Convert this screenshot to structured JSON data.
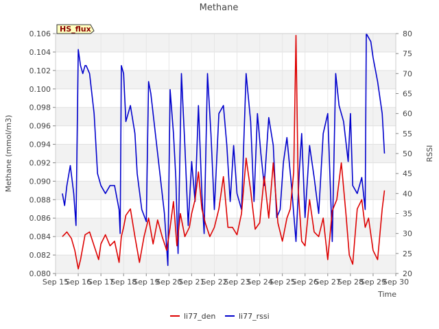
{
  "chart_data": {
    "type": "line",
    "title": "Methane",
    "xlabel": "Time",
    "ylabel": "Methane (mmol/m3)",
    "y2label": "RSSI",
    "badge": "HS_flux",
    "x_ticks": [
      "Sep 15",
      "Sep 16",
      "Sep 17",
      "Sep 18",
      "Sep 19",
      "Sep 20",
      "Sep 21",
      "Sep 22",
      "Sep 23",
      "Sep 24",
      "Sep 25",
      "Sep 26",
      "Sep 27",
      "Sep 28",
      "Sep 29",
      "Sep 30"
    ],
    "xlim": [
      15,
      30
    ],
    "ylim": [
      0.08,
      0.106
    ],
    "y_ticks": [
      "0.080",
      "0.082",
      "0.084",
      "0.086",
      "0.088",
      "0.090",
      "0.092",
      "0.094",
      "0.096",
      "0.098",
      "0.100",
      "0.102",
      "0.104",
      "0.106"
    ],
    "y2lim": [
      20,
      80
    ],
    "y2_ticks": [
      "20",
      "25",
      "30",
      "35",
      "40",
      "45",
      "50",
      "55",
      "60",
      "65",
      "70",
      "75",
      "80"
    ],
    "legend_position": "bottom",
    "grid": true,
    "series": [
      {
        "name": "li77_den",
        "axis": "left",
        "color": "#dd0000",
        "x": [
          15.3,
          15.5,
          15.7,
          15.85,
          16.0,
          16.1,
          16.3,
          16.5,
          16.7,
          16.9,
          17.0,
          17.2,
          17.4,
          17.6,
          17.8,
          17.9,
          18.0,
          18.1,
          18.3,
          18.5,
          18.7,
          18.9,
          19.1,
          19.3,
          19.5,
          19.7,
          19.9,
          20.05,
          20.2,
          20.35,
          20.5,
          20.7,
          20.9,
          21.0,
          21.15,
          21.3,
          21.45,
          21.6,
          21.8,
          22.0,
          22.2,
          22.4,
          22.6,
          22.8,
          23.0,
          23.2,
          23.4,
          23.6,
          23.8,
          24.0,
          24.2,
          24.4,
          24.6,
          24.8,
          25.0,
          25.2,
          25.35,
          25.5,
          25.6,
          25.7,
          25.85,
          26.0,
          26.2,
          26.4,
          26.6,
          26.8,
          27.0,
          27.2,
          27.4,
          27.6,
          27.8,
          27.95,
          28.1,
          28.3,
          28.5,
          28.65,
          28.8,
          29.0,
          29.2,
          29.4,
          29.5
        ],
        "y": [
          0.084,
          0.0845,
          0.0838,
          0.0825,
          0.0805,
          0.0815,
          0.0842,
          0.0845,
          0.083,
          0.0815,
          0.0832,
          0.0842,
          0.083,
          0.0835,
          0.0812,
          0.084,
          0.085,
          0.0863,
          0.087,
          0.084,
          0.0812,
          0.084,
          0.086,
          0.0832,
          0.0858,
          0.084,
          0.0825,
          0.085,
          0.0878,
          0.083,
          0.0865,
          0.084,
          0.085,
          0.0865,
          0.088,
          0.091,
          0.087,
          0.0855,
          0.084,
          0.085,
          0.087,
          0.0905,
          0.085,
          0.085,
          0.0842,
          0.0865,
          0.0925,
          0.089,
          0.0848,
          0.0855,
          0.0905,
          0.086,
          0.092,
          0.0855,
          0.0835,
          0.086,
          0.087,
          0.091,
          0.1058,
          0.089,
          0.0835,
          0.083,
          0.088,
          0.0845,
          0.084,
          0.086,
          0.0815,
          0.0868,
          0.088,
          0.092,
          0.0865,
          0.082,
          0.081,
          0.087,
          0.088,
          0.085,
          0.086,
          0.0825,
          0.0815,
          0.087,
          0.089
        ],
        "values": [
          0.084,
          0.0845,
          0.0838,
          0.0825,
          0.0805,
          0.0815,
          0.0842,
          0.0845,
          0.083,
          0.0815,
          0.0832,
          0.0842,
          0.083,
          0.0835,
          0.0812,
          0.084,
          0.085,
          0.0863,
          0.087,
          0.084,
          0.0812,
          0.084,
          0.086,
          0.0832,
          0.0858,
          0.084,
          0.0825,
          0.085,
          0.0878,
          0.083,
          0.0865,
          0.084,
          0.085,
          0.0865,
          0.088,
          0.091,
          0.087,
          0.0855,
          0.084,
          0.085,
          0.087,
          0.0905,
          0.085,
          0.085,
          0.0842,
          0.0865,
          0.0925,
          0.089,
          0.0848,
          0.0855,
          0.0905,
          0.086,
          0.092,
          0.0855,
          0.0835,
          0.086,
          0.087,
          0.091,
          0.1058,
          0.089,
          0.0835,
          0.083,
          0.088,
          0.0845,
          0.084,
          0.086,
          0.0815,
          0.0868,
          0.088,
          0.092,
          0.0865,
          0.082,
          0.081,
          0.087,
          0.088,
          0.085,
          0.086,
          0.0825,
          0.0815,
          0.087,
          0.089
        ]
      },
      {
        "name": "li77_rssi",
        "axis": "right",
        "color": "#0000cc",
        "x": [
          15.3,
          15.4,
          15.5,
          15.65,
          15.8,
          15.9,
          16.0,
          16.1,
          16.2,
          16.3,
          16.35,
          16.5,
          16.7,
          16.85,
          17.0,
          17.2,
          17.4,
          17.6,
          17.8,
          17.85,
          17.9,
          18.0,
          18.1,
          18.3,
          18.5,
          18.6,
          18.8,
          19.0,
          19.1,
          19.2,
          19.4,
          19.6,
          19.8,
          19.95,
          20.05,
          20.2,
          20.3,
          20.4,
          20.55,
          20.7,
          20.85,
          21.0,
          21.15,
          21.3,
          21.45,
          21.55,
          21.7,
          21.85,
          22.0,
          22.2,
          22.4,
          22.55,
          22.7,
          22.85,
          23.0,
          23.2,
          23.4,
          23.6,
          23.75,
          23.9,
          24.05,
          24.2,
          24.4,
          24.6,
          24.75,
          24.9,
          25.05,
          25.2,
          25.4,
          25.6,
          25.75,
          25.85,
          26.0,
          26.2,
          26.4,
          26.6,
          26.8,
          27.0,
          27.2,
          27.35,
          27.5,
          27.7,
          27.9,
          28.0,
          28.1,
          28.3,
          28.5,
          28.65,
          28.7,
          28.9,
          29.0,
          29.2,
          29.4,
          29.5
        ],
        "y": [
          40,
          37,
          42,
          47,
          40,
          32,
          76,
          72,
          70,
          72,
          72,
          70,
          60,
          45,
          42,
          40,
          42,
          42,
          36,
          30,
          72,
          70,
          58,
          62,
          55,
          45,
          36,
          33,
          68,
          65,
          55,
          45,
          35,
          22,
          66,
          55,
          44,
          25,
          70,
          52,
          32,
          48,
          38,
          62,
          40,
          30,
          70,
          55,
          36,
          60,
          62,
          52,
          38,
          52,
          40,
          36,
          70,
          58,
          38,
          60,
          50,
          42,
          59,
          52,
          34,
          36,
          48,
          54,
          42,
          28,
          46,
          55,
          34,
          52,
          44,
          35,
          55,
          60,
          28,
          70,
          62,
          58,
          48,
          60,
          42,
          40,
          44,
          36,
          80,
          78,
          74,
          68,
          60,
          50
        ],
        "values": [
          40,
          37,
          42,
          47,
          40,
          32,
          76,
          72,
          70,
          72,
          72,
          70,
          60,
          45,
          42,
          40,
          42,
          42,
          36,
          30,
          72,
          70,
          58,
          62,
          55,
          45,
          36,
          33,
          68,
          65,
          55,
          45,
          35,
          22,
          66,
          55,
          44,
          25,
          70,
          52,
          32,
          48,
          38,
          62,
          40,
          30,
          70,
          55,
          36,
          60,
          62,
          52,
          38,
          52,
          40,
          36,
          70,
          58,
          38,
          60,
          50,
          42,
          59,
          52,
          34,
          36,
          48,
          54,
          42,
          28,
          46,
          55,
          34,
          52,
          44,
          35,
          55,
          60,
          28,
          70,
          62,
          58,
          48,
          60,
          42,
          40,
          44,
          36,
          80,
          78,
          74,
          68,
          60,
          50
        ]
      }
    ]
  }
}
